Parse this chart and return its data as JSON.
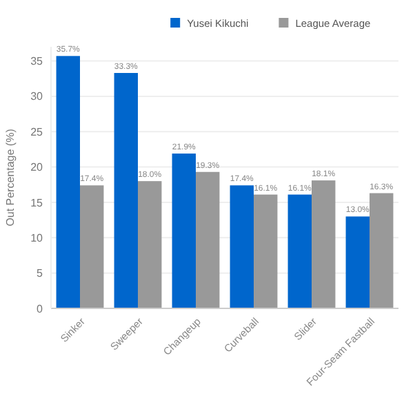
{
  "chart_data": {
    "type": "bar",
    "ylabel": "Out Percentage (%)",
    "categories": [
      "Sinker",
      "Sweeper",
      "Changeup",
      "Curveball",
      "Slider",
      "Four-Seam Fastball"
    ],
    "series": [
      {
        "name": "Yusei Kikuchi",
        "color": "#0066cc",
        "values": [
          35.7,
          33.3,
          21.9,
          17.4,
          16.1,
          13.0
        ],
        "value_labels": [
          "35.7%",
          "33.3%",
          "21.9%",
          "17.4%",
          "16.1%",
          "13.0%"
        ]
      },
      {
        "name": "League Average",
        "color": "#999999",
        "values": [
          17.4,
          18.0,
          19.3,
          16.1,
          18.1,
          16.3
        ],
        "value_labels": [
          "17.4%",
          "18.0%",
          "19.3%",
          "16.1%",
          "18.1%",
          "16.3%"
        ]
      }
    ],
    "ylim": [
      0,
      37
    ],
    "yticks": [
      0,
      5,
      10,
      15,
      20,
      25,
      30,
      35
    ],
    "grid": "y",
    "legend": "top right"
  }
}
